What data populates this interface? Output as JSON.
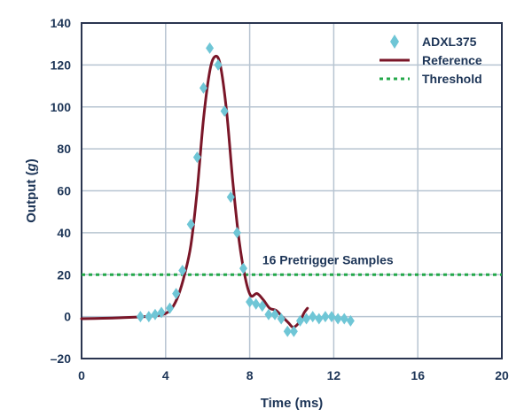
{
  "chart_data": {
    "type": "line",
    "title": "",
    "xlabel": "Time (ms)",
    "ylabel_prefix": "Output (",
    "ylabel_unit": "g",
    "ylabel_suffix": ")",
    "xlim": [
      0,
      20
    ],
    "ylim": [
      -20,
      140
    ],
    "x_ticks": [
      0,
      4,
      8,
      12,
      16,
      20
    ],
    "y_ticks": [
      -20,
      0,
      20,
      40,
      60,
      80,
      100,
      120,
      140
    ],
    "grid": true,
    "legend_position": "top-right",
    "colors": {
      "axis_text": "#1d3557",
      "grid": "#b7c4d1",
      "plot_border": "#2a3550",
      "adxl375": "#6fc6d6",
      "reference": "#7a1628",
      "threshold": "#24a84a"
    },
    "series": [
      {
        "name": "ADXL375",
        "kind": "marker",
        "marker": "diamond",
        "points": [
          [
            2.8,
            0
          ],
          [
            3.2,
            0
          ],
          [
            3.5,
            1
          ],
          [
            3.8,
            2
          ],
          [
            4.2,
            4
          ],
          [
            4.5,
            11
          ],
          [
            4.8,
            22
          ],
          [
            5.2,
            44
          ],
          [
            5.5,
            76
          ],
          [
            5.8,
            109
          ],
          [
            6.1,
            128
          ],
          [
            6.5,
            120
          ],
          [
            6.8,
            98
          ],
          [
            7.1,
            57
          ],
          [
            7.4,
            40
          ],
          [
            7.7,
            23
          ],
          [
            8.0,
            7
          ],
          [
            8.3,
            6
          ],
          [
            8.6,
            5
          ],
          [
            8.9,
            1
          ],
          [
            9.2,
            1
          ],
          [
            9.5,
            -1
          ],
          [
            9.8,
            -7
          ],
          [
            10.1,
            -7
          ],
          [
            10.4,
            -2
          ],
          [
            10.7,
            -1
          ],
          [
            11.0,
            0
          ],
          [
            11.3,
            -1
          ],
          [
            11.6,
            0
          ],
          [
            11.9,
            0
          ],
          [
            12.2,
            -1
          ],
          [
            12.5,
            -1
          ],
          [
            12.8,
            -2
          ]
        ]
      },
      {
        "name": "Reference",
        "kind": "line",
        "points": [
          [
            0,
            -1
          ],
          [
            1,
            -0.8
          ],
          [
            2,
            -0.5
          ],
          [
            3,
            0
          ],
          [
            3.6,
            0.5
          ],
          [
            4.0,
            1.5
          ],
          [
            4.3,
            4
          ],
          [
            4.6,
            10
          ],
          [
            4.9,
            20
          ],
          [
            5.2,
            34
          ],
          [
            5.5,
            60
          ],
          [
            5.8,
            94
          ],
          [
            6.1,
            117
          ],
          [
            6.35,
            124
          ],
          [
            6.6,
            120
          ],
          [
            6.9,
            98
          ],
          [
            7.2,
            64
          ],
          [
            7.5,
            36
          ],
          [
            7.8,
            18
          ],
          [
            8.05,
            10
          ],
          [
            8.35,
            11
          ],
          [
            8.65,
            8
          ],
          [
            8.95,
            4
          ],
          [
            9.25,
            3
          ],
          [
            9.55,
            0
          ],
          [
            9.85,
            -3
          ],
          [
            10.05,
            -5
          ],
          [
            10.25,
            -4
          ],
          [
            10.45,
            -1
          ],
          [
            10.6,
            2
          ],
          [
            10.75,
            4
          ]
        ]
      },
      {
        "name": "Threshold",
        "kind": "hline",
        "y": 20
      }
    ],
    "annotations": [
      {
        "text": "16 Pretrigger Samples",
        "x": 8.6,
        "y": 25
      }
    ]
  }
}
